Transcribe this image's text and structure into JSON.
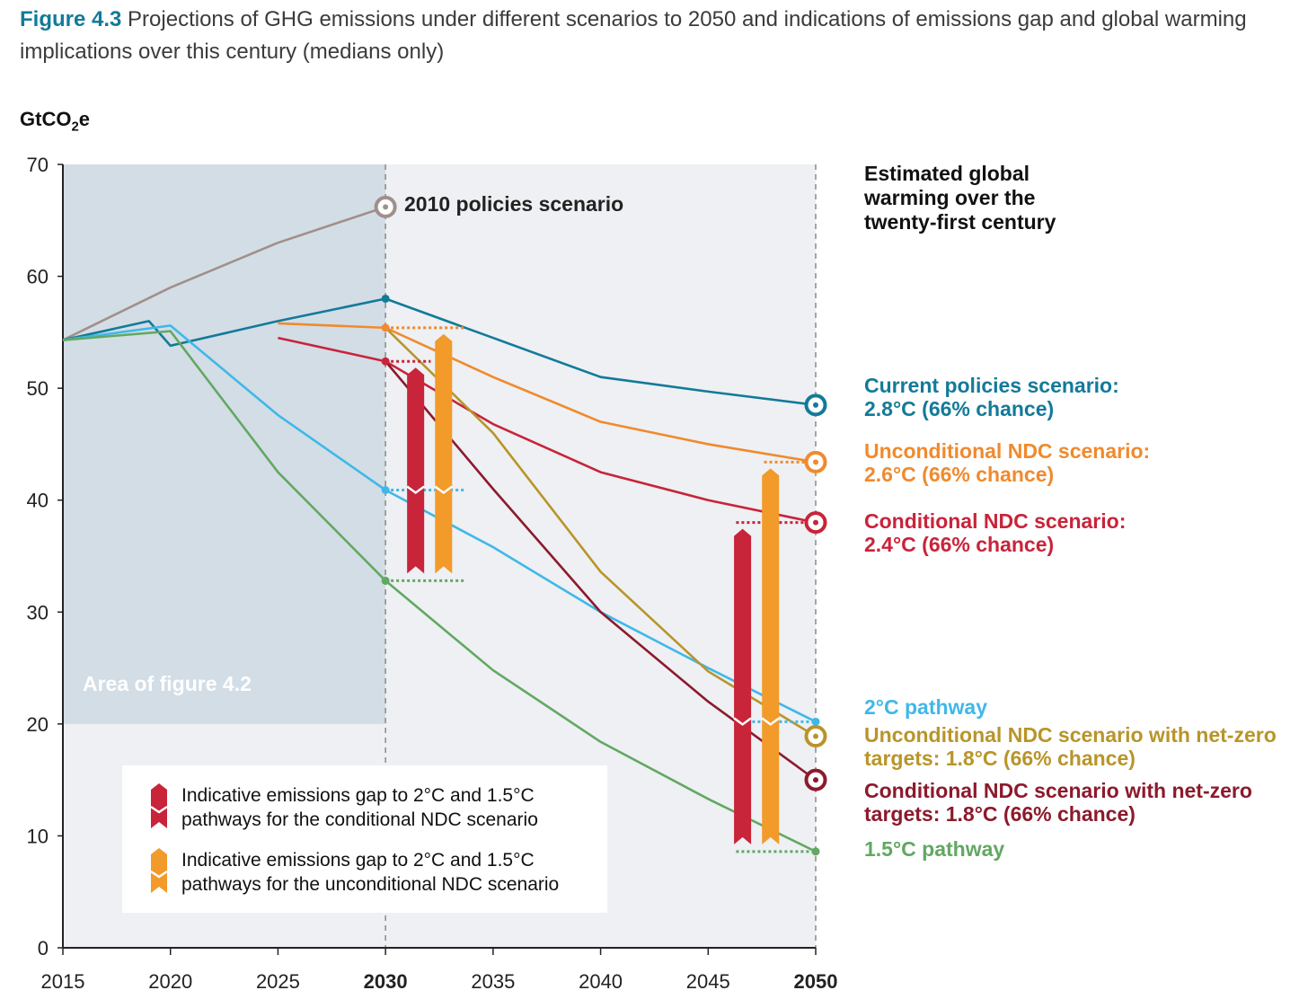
{
  "caption": {
    "figure_label": "Figure 4.3",
    "text": "Projections of GHG emissions under different scenarios to 2050 and indications of emissions gap and global warming implications over this century (medians only)"
  },
  "y_axis_unit": "GtCO",
  "y_axis_unit_sub": "2",
  "y_axis_unit_suffix": "e",
  "shaded_area_label": "Area of figure 4.2",
  "right_panel_title": "Estimated global warming over the twenty-first century",
  "colors": {
    "current": "#137a99",
    "unconditional": "#f08a2e",
    "conditional": "#c8243a",
    "two_c": "#3fb8e8",
    "uncond_nz": "#b8952a",
    "cond_nz": "#8c1a2c",
    "one_five": "#62a862",
    "policies2010": "#a08f8b"
  },
  "legend": {
    "conditional": "Indicative emissions gap to 2°C and 1.5°C pathways for the conditional NDC scenario",
    "unconditional": "Indicative emissions gap to 2°C and 1.5°C pathways for the unconditional NDC scenario"
  },
  "series_labels": {
    "policies2010": "2010 policies scenario",
    "current_1": "Current policies scenario:",
    "current_2": "2.8°C (66% chance)",
    "unconditional_1": "Unconditional NDC scenario:",
    "unconditional_2": "2.6°C (66% chance)",
    "conditional_1": "Conditional NDC scenario:",
    "conditional_2": "2.4°C (66% chance)",
    "two_c": "2°C pathway",
    "uncond_nz_1": "Unconditional NDC scenario with net-zero",
    "uncond_nz_2": "targets: 1.8°C (66% chance)",
    "cond_nz_1": "Conditional NDC scenario with net-zero",
    "cond_nz_2": "targets: 1.8°C (66% chance)",
    "one_five": "1.5°C pathway"
  },
  "chart_data": {
    "type": "line",
    "xlim": [
      2015,
      2050
    ],
    "ylim": [
      0,
      70
    ],
    "x_ticks": [
      2015,
      2020,
      2025,
      2030,
      2035,
      2040,
      2045,
      2050
    ],
    "x_ticks_bold": [
      2030,
      2050
    ],
    "y_ticks": [
      0,
      10,
      20,
      30,
      40,
      50,
      60,
      70
    ],
    "grid": false,
    "series": [
      {
        "key": "policies2010",
        "x": [
          2015,
          2020,
          2025,
          2030
        ],
        "y": [
          54.3,
          59,
          63,
          66.2
        ]
      },
      {
        "key": "current",
        "x": [
          2015,
          2019,
          2020,
          2025,
          2030,
          2035,
          2040,
          2045,
          2050
        ],
        "y": [
          54.3,
          56,
          53.8,
          56,
          58,
          54.5,
          51,
          49.7,
          48.5
        ]
      },
      {
        "key": "unconditional",
        "x": [
          2025,
          2030,
          2035,
          2040,
          2045,
          2050
        ],
        "y": [
          55.8,
          55.4,
          51,
          47,
          45,
          43.4
        ]
      },
      {
        "key": "conditional",
        "x": [
          2025,
          2030,
          2035,
          2040,
          2045,
          2050
        ],
        "y": [
          54.5,
          52.4,
          46.8,
          42.5,
          40,
          38
        ]
      },
      {
        "key": "two_c",
        "x": [
          2015,
          2020,
          2025,
          2030,
          2035,
          2040,
          2045,
          2050
        ],
        "y": [
          54.3,
          55.6,
          47.6,
          40.9,
          35.8,
          30,
          25,
          20.2
        ]
      },
      {
        "key": "uncond_nz",
        "x": [
          2030,
          2035,
          2040,
          2045,
          2050
        ],
        "y": [
          55.4,
          46,
          33.6,
          24.7,
          18.9
        ]
      },
      {
        "key": "cond_nz",
        "x": [
          2030,
          2035,
          2040,
          2045,
          2050
        ],
        "y": [
          52.4,
          41,
          30,
          22,
          15
        ]
      },
      {
        "key": "one_five",
        "x": [
          2015,
          2020,
          2025,
          2030,
          2035,
          2040,
          2045,
          2050
        ],
        "y": [
          54.3,
          55.1,
          42.5,
          32.8,
          24.8,
          18.4,
          13.3,
          8.6
        ]
      }
    ],
    "gap_bars": [
      {
        "key": "conditional",
        "x": 2031.4,
        "top": 52.4,
        "mid": 40.9,
        "bottom": 32.8
      },
      {
        "key": "unconditional",
        "x": 2032.7,
        "top": 55.4,
        "mid": 40.9,
        "bottom": 32.8
      },
      {
        "key": "conditional",
        "x": 2046.6,
        "top": 38,
        "mid": 20.2,
        "bottom": 8.6
      },
      {
        "key": "unconditional",
        "x": 2047.9,
        "top": 43.4,
        "mid": 20.2,
        "bottom": 8.6
      }
    ]
  }
}
